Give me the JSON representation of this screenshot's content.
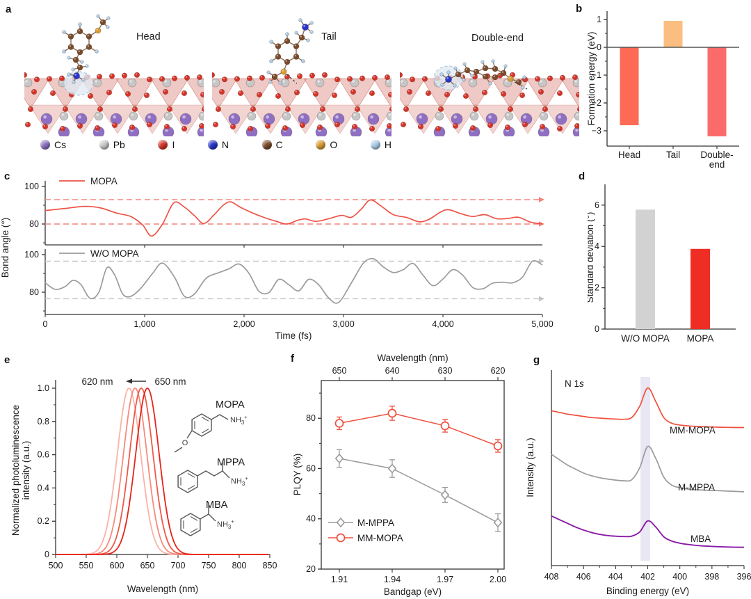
{
  "panels": {
    "a": {
      "letter": "a",
      "sublabels": [
        "Head",
        "Tail",
        "Double-end"
      ],
      "atom_legend": [
        {
          "symbol": "Cs",
          "color": "#8f6fc2"
        },
        {
          "symbol": "Pb",
          "color": "#c6c6c6"
        },
        {
          "symbol": "I",
          "color": "#d63429"
        },
        {
          "symbol": "N",
          "color": "#2734c9"
        },
        {
          "symbol": "C",
          "color": "#7a4b2a"
        },
        {
          "symbol": "O",
          "color": "#d89b33"
        },
        {
          "symbol": "H",
          "color": "#a8cbe8"
        }
      ]
    },
    "b": {
      "letter": "b"
    },
    "c": {
      "letter": "c"
    },
    "d": {
      "letter": "d"
    },
    "e": {
      "letter": "e"
    },
    "f": {
      "letter": "f"
    },
    "g": {
      "letter": "g"
    }
  },
  "chart_data": [
    {
      "id": "b",
      "type": "bar",
      "ylabel": "Formation energy (eV)",
      "categories": [
        "Head",
        "Tail",
        "Double-end"
      ],
      "category_lines": [
        [
          "Head"
        ],
        [
          "Tail"
        ],
        [
          "Double-",
          "end"
        ]
      ],
      "values": [
        -2.8,
        0.95,
        -3.2
      ],
      "bar_colors": [
        "#fd6a55",
        "#fbbd80",
        "#fc6b6b"
      ],
      "ylim": [
        -3.5,
        1.3
      ],
      "yticks": [
        1,
        0,
        -1,
        -2,
        -3
      ],
      "yticks_minor": [
        0.5,
        -0.5,
        -1.5,
        -2.5
      ]
    },
    {
      "id": "c",
      "type": "line",
      "xlabel": "Time (fs)",
      "ylabel": "Bond angle (°)",
      "xlim": [
        0,
        5000
      ],
      "xticks": [
        0,
        1000,
        2000,
        3000,
        4000,
        5000
      ],
      "xtick_labels": [
        "0",
        "1,000",
        "2,000",
        "3,000",
        "4,000",
        "5,000"
      ],
      "ylim": [
        68.5,
        103
      ],
      "yticks": [
        100,
        80
      ],
      "yticks_minor": [
        90,
        70
      ],
      "subplots": [
        {
          "name": "MOPA",
          "color": "#ed5347",
          "dash_color": "#f2837a",
          "dashed_lines": [
            93,
            80
          ],
          "points": [
            [
              0,
              87.2
            ],
            [
              200,
              88.3
            ],
            [
              400,
              89.4
            ],
            [
              560,
              88.5
            ],
            [
              720,
              85.8
            ],
            [
              860,
              84.0
            ],
            [
              980,
              79.5
            ],
            [
              1070,
              73.6
            ],
            [
              1180,
              80.0
            ],
            [
              1294,
              91.3
            ],
            [
              1400,
              89.0
            ],
            [
              1500,
              84.5
            ],
            [
              1596,
              80.3
            ],
            [
              1700,
              85.0
            ],
            [
              1790,
              90.0
            ],
            [
              1866,
              91.8
            ],
            [
              1960,
              89.0
            ],
            [
              2080,
              86.0
            ],
            [
              2200,
              83.5
            ],
            [
              2320,
              81.5
            ],
            [
              2430,
              80.0
            ],
            [
              2540,
              82.0
            ],
            [
              2620,
              82.7
            ],
            [
              2720,
              81.4
            ],
            [
              2850,
              82.8
            ],
            [
              2980,
              84.6
            ],
            [
              3080,
              83.6
            ],
            [
              3180,
              88.0
            ],
            [
              3270,
              92.8
            ],
            [
              3380,
              89.5
            ],
            [
              3500,
              85.0
            ],
            [
              3640,
              83.4
            ],
            [
              3760,
              81.2
            ],
            [
              3860,
              82.5
            ],
            [
              3980,
              86.5
            ],
            [
              4060,
              87.6
            ],
            [
              4180,
              85.5
            ],
            [
              4300,
              84.0
            ],
            [
              4420,
              85.0
            ],
            [
              4540,
              82.8
            ],
            [
              4660,
              83.0
            ],
            [
              4760,
              83.6
            ],
            [
              4880,
              81.0
            ],
            [
              5000,
              80.1
            ]
          ]
        },
        {
          "name": "W/O MOPA",
          "color": "#9b9b9b",
          "dash_color": "#c4c4c4",
          "dashed_lines": [
            96.5,
            76.5
          ],
          "points": [
            [
              0,
              85.0
            ],
            [
              100,
              81.5
            ],
            [
              200,
              83.0
            ],
            [
              280,
              86.3
            ],
            [
              360,
              84.0
            ],
            [
              450,
              76.8
            ],
            [
              540,
              80.0
            ],
            [
              620,
              93.0
            ],
            [
              700,
              89.0
            ],
            [
              780,
              79.0
            ],
            [
              860,
              77.8
            ],
            [
              960,
              82.0
            ],
            [
              1080,
              90.0
            ],
            [
              1180,
              95.5
            ],
            [
              1300,
              88.0
            ],
            [
              1400,
              77.8
            ],
            [
              1500,
              79.0
            ],
            [
              1620,
              87.5
            ],
            [
              1750,
              90.5
            ],
            [
              1850,
              92.5
            ],
            [
              1950,
              95.0
            ],
            [
              2050,
              90.0
            ],
            [
              2150,
              80.5
            ],
            [
              2250,
              79.8
            ],
            [
              2350,
              86.8
            ],
            [
              2450,
              84.0
            ],
            [
              2550,
              80.7
            ],
            [
              2650,
              86.8
            ],
            [
              2750,
              84.0
            ],
            [
              2850,
              77.0
            ],
            [
              2950,
              74.5
            ],
            [
              3080,
              85.0
            ],
            [
              3200,
              95.5
            ],
            [
              3300,
              97.8
            ],
            [
              3400,
              93.5
            ],
            [
              3500,
              90.5
            ],
            [
              3600,
              92.0
            ],
            [
              3700,
              95.3
            ],
            [
              3800,
              89.0
            ],
            [
              3900,
              83.5
            ],
            [
              4000,
              87.0
            ],
            [
              4100,
              92.0
            ],
            [
              4200,
              89.0
            ],
            [
              4300,
              82.5
            ],
            [
              4400,
              81.8
            ],
            [
              4500,
              84.8
            ],
            [
              4600,
              85.3
            ],
            [
              4700,
              85.0
            ],
            [
              4800,
              88.0
            ],
            [
              4900,
              96.5
            ],
            [
              5000,
              94.5
            ]
          ]
        }
      ]
    },
    {
      "id": "d",
      "type": "bar",
      "ylabel": "Standard deviation (°)",
      "categories": [
        "W/O MOPA",
        "MOPA"
      ],
      "values": [
        5.78,
        3.88
      ],
      "bar_colors": [
        "#d2d2d2",
        "#ee2e24"
      ],
      "ylim": [
        0,
        7
      ],
      "yticks": [
        0,
        2,
        4,
        6
      ],
      "yticks_minor": [
        1,
        3,
        5
      ]
    },
    {
      "id": "e",
      "type": "line",
      "xlabel": "Wavelength (nm)",
      "ylabel": "Normalized photoluminescence intensity (a.u.)",
      "ylabel_lines": [
        "Normalized photoluminescence",
        "intensity (a.u.)"
      ],
      "xlim": [
        500,
        850
      ],
      "xticks": [
        500,
        550,
        600,
        650,
        700,
        750,
        800,
        850
      ],
      "yticks": [
        0,
        0.2,
        0.4,
        0.6,
        0.8,
        1.0
      ],
      "ytick_labels": [
        "0",
        "0.2",
        "0.4",
        "0.6",
        "0.8",
        "1.0"
      ],
      "yticks_minor": [
        0.1,
        0.3,
        0.5,
        0.7,
        0.9
      ],
      "annotation": {
        "left_label": "620 nm",
        "right_label": "650 nm"
      },
      "peaks": [
        {
          "center_nm": 620,
          "height": 1.0,
          "fwhm_nm": 45,
          "color": "#fbb2a6"
        },
        {
          "center_nm": 630,
          "height": 1.0,
          "fwhm_nm": 45,
          "color": "#f68a7b"
        },
        {
          "center_nm": 640,
          "height": 1.0,
          "fwhm_nm": 45,
          "color": "#ef5848"
        },
        {
          "center_nm": 650,
          "height": 1.0,
          "fwhm_nm": 45,
          "color": "#e6231a"
        }
      ],
      "molecules": [
        {
          "name": "MOPA",
          "amine": "NH3+"
        },
        {
          "name": "MPPA",
          "amine": "NH3+"
        },
        {
          "name": "MBA",
          "amine": "NH3+"
        }
      ]
    },
    {
      "id": "f",
      "type": "scatter",
      "xlabel_bottom": "Bandgap (eV)",
      "xlabel_top": "Wavelength (nm)",
      "ylabel": "PLQY (%)",
      "x": [
        1.91,
        1.94,
        1.97,
        2.0
      ],
      "xtick_labels_bottom": [
        "1.91",
        "1.94",
        "1.97",
        "2.00"
      ],
      "xtick_labels_top": [
        "650",
        "640",
        "630",
        "620"
      ],
      "ylim": [
        20,
        95
      ],
      "yticks": [
        20,
        40,
        60,
        80
      ],
      "yticks_minor": [
        30,
        50,
        70,
        90
      ],
      "series": [
        {
          "name": "M-MPPA",
          "marker": "diamond",
          "color": "#9a9a9a",
          "values": [
            64,
            60,
            49.5,
            38.5
          ],
          "errors": [
            3.5,
            3.5,
            3.0,
            3.5
          ]
        },
        {
          "name": "MM-MOPA",
          "marker": "circle",
          "color": "#f04e3e",
          "values": [
            78,
            82,
            77,
            69
          ],
          "errors": [
            2.5,
            2.8,
            2.5,
            2.5
          ]
        }
      ]
    },
    {
      "id": "g",
      "type": "line",
      "xlabel": "Binding energy (eV)",
      "ylabel": "Intensity (a.u.)",
      "annotation": "N 1s",
      "x_reversed": true,
      "xlim": [
        408,
        396
      ],
      "xticks": [
        408,
        406,
        404,
        402,
        400,
        398,
        396
      ],
      "xticks_minor": [
        407,
        405,
        403,
        401,
        399,
        397
      ],
      "highlight_band_ev": [
        402.45,
        401.85
      ],
      "peak_center_ev": 402,
      "x": [
        408,
        407.5,
        407,
        406.5,
        406,
        405.5,
        405,
        404.5,
        404,
        403.5,
        403,
        402.5,
        402,
        401.5,
        401,
        400.5,
        400,
        399.5,
        399,
        398.5,
        398,
        397.5,
        397,
        396.5,
        396
      ],
      "series": [
        {
          "name": "MM-MOPA",
          "color": "#f04f3b",
          "y": [
            0.52,
            0.49,
            0.46,
            0.44,
            0.42,
            0.4,
            0.39,
            0.38,
            0.375,
            0.37,
            0.4,
            0.6,
            0.92,
            0.68,
            0.4,
            0.3,
            0.27,
            0.255,
            0.245,
            0.24,
            0.235,
            0.23,
            0.228,
            0.226,
            0.225
          ]
        },
        {
          "name": "M-MPPA",
          "color": "#9a9a9a",
          "y": [
            0.78,
            0.7,
            0.62,
            0.56,
            0.5,
            0.46,
            0.43,
            0.41,
            0.395,
            0.385,
            0.4,
            0.58,
            0.9,
            0.72,
            0.44,
            0.32,
            0.28,
            0.26,
            0.25,
            0.245,
            0.24,
            0.235,
            0.23,
            0.225,
            0.22
          ]
        },
        {
          "name": "MBA",
          "color": "#8a1ca6",
          "y": [
            0.64,
            0.58,
            0.52,
            0.46,
            0.41,
            0.37,
            0.34,
            0.32,
            0.31,
            0.305,
            0.31,
            0.38,
            0.56,
            0.46,
            0.3,
            0.23,
            0.195,
            0.175,
            0.16,
            0.15,
            0.143,
            0.138,
            0.133,
            0.13,
            0.128
          ]
        }
      ]
    }
  ]
}
